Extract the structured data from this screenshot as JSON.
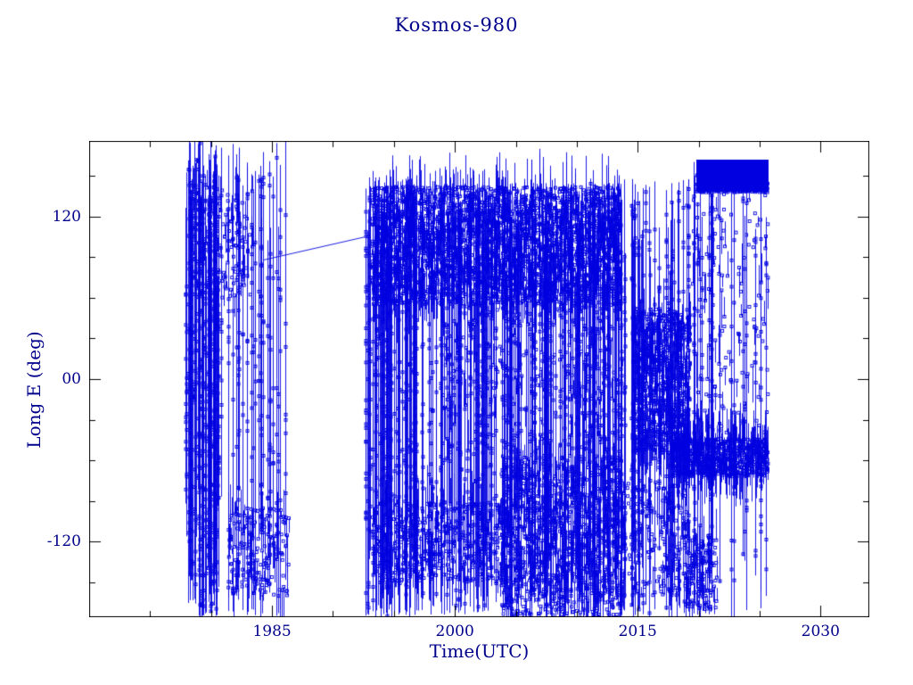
{
  "chart_data": {
    "type": "scatter",
    "title": "Kosmos-980",
    "xlabel": "Time(UTC)",
    "ylabel": "Long E (deg)",
    "xlim": [
      1970,
      2034
    ],
    "ylim": [
      -176,
      176
    ],
    "grid": false,
    "legend": "none",
    "xticks": [
      {
        "v": 1985,
        "label": "1985"
      },
      {
        "v": 2000,
        "label": "2000"
      },
      {
        "v": 2015,
        "label": "2015"
      },
      {
        "v": 2030,
        "label": "2030"
      }
    ],
    "yticks": [
      {
        "v": 120,
        "label": "120"
      },
      {
        "v": 0,
        "label": "00"
      },
      {
        "v": -120,
        "label": "-120"
      }
    ],
    "xminor": [
      1975,
      1980,
      1990,
      1995,
      2005,
      2010,
      2020,
      2025
    ],
    "yminor": [
      -150,
      -90,
      -60,
      -30,
      30,
      60,
      90,
      150
    ],
    "colors": {
      "data": "#0000e0",
      "axis": "#000000",
      "text": "#00008b"
    },
    "marker": "open-square",
    "seed": 42,
    "bands": [
      {
        "style": "columns",
        "t0": 1977.9,
        "t1": 1980.6,
        "lon0": -176,
        "lon1": 176,
        "n": 55,
        "markers": 10
      },
      {
        "style": "columns",
        "t0": 1980.6,
        "t1": 1986.2,
        "lon0": -176,
        "lon1": 176,
        "n": 26,
        "markers": 8
      },
      {
        "style": "scatter",
        "t0": 1978.3,
        "t1": 1983.4,
        "lon0": 60,
        "lon1": 142,
        "n": 150
      },
      {
        "style": "scatter",
        "t0": 1981.4,
        "t1": 1986.4,
        "lon0": -160,
        "lon1": -95,
        "n": 170
      },
      {
        "style": "line",
        "pts": [
          [
            1984.3,
            88
          ],
          [
            1992.6,
            105
          ]
        ]
      },
      {
        "style": "columns",
        "t0": 1992.6,
        "t1": 1997.0,
        "lon0": -176,
        "lon1": 150,
        "n": 70,
        "markers": 7
      },
      {
        "style": "columns",
        "t0": 1997.0,
        "t1": 2004.0,
        "lon0": -176,
        "lon1": 145,
        "n": 60,
        "markers": 7
      },
      {
        "style": "columns",
        "t0": 2004.0,
        "t1": 2013.8,
        "lon0": -176,
        "lon1": 145,
        "n": 110,
        "markers": 7
      },
      {
        "style": "scatter",
        "t0": 1993.2,
        "t1": 2013.6,
        "lon0": 55,
        "lon1": 142,
        "n": 2600
      },
      {
        "style": "scatter",
        "t0": 1993.2,
        "t1": 2004.2,
        "lon0": -150,
        "lon1": -92,
        "n": 430
      },
      {
        "style": "scatter",
        "t0": 2003.8,
        "t1": 2013.8,
        "lon0": -176,
        "lon1": -58,
        "n": 950
      },
      {
        "style": "scatter",
        "t0": 1999.0,
        "t1": 2013.8,
        "lon0": -58,
        "lon1": 55,
        "n": 260
      },
      {
        "style": "columns",
        "t0": 2013.8,
        "t1": 2019.2,
        "lon0": -176,
        "lon1": 148,
        "n": 38,
        "markers": 8
      },
      {
        "style": "scatter",
        "t0": 2014.6,
        "t1": 2019.3,
        "lon0": -55,
        "lon1": 52,
        "n": 750
      },
      {
        "style": "scatter",
        "t0": 2013.8,
        "t1": 2019.0,
        "lon0": -160,
        "lon1": -75,
        "n": 170
      },
      {
        "style": "block",
        "t0": 2019.8,
        "t1": 2025.7,
        "lon0": 138,
        "lon1": 162,
        "n": 1500
      },
      {
        "style": "scatter",
        "t0": 2017.8,
        "t1": 2025.7,
        "lon0": -72,
        "lon1": -44,
        "n": 700
      },
      {
        "style": "columns",
        "t0": 2019.2,
        "t1": 2025.7,
        "lon0": -176,
        "lon1": 162,
        "n": 22,
        "markers": 7
      },
      {
        "style": "scatter",
        "t0": 2018.8,
        "t1": 2021.5,
        "lon0": -170,
        "lon1": -115,
        "n": 130
      },
      {
        "style": "scatter",
        "t0": 2019.5,
        "t1": 2025.7,
        "lon0": -40,
        "lon1": 138,
        "n": 130
      }
    ]
  }
}
